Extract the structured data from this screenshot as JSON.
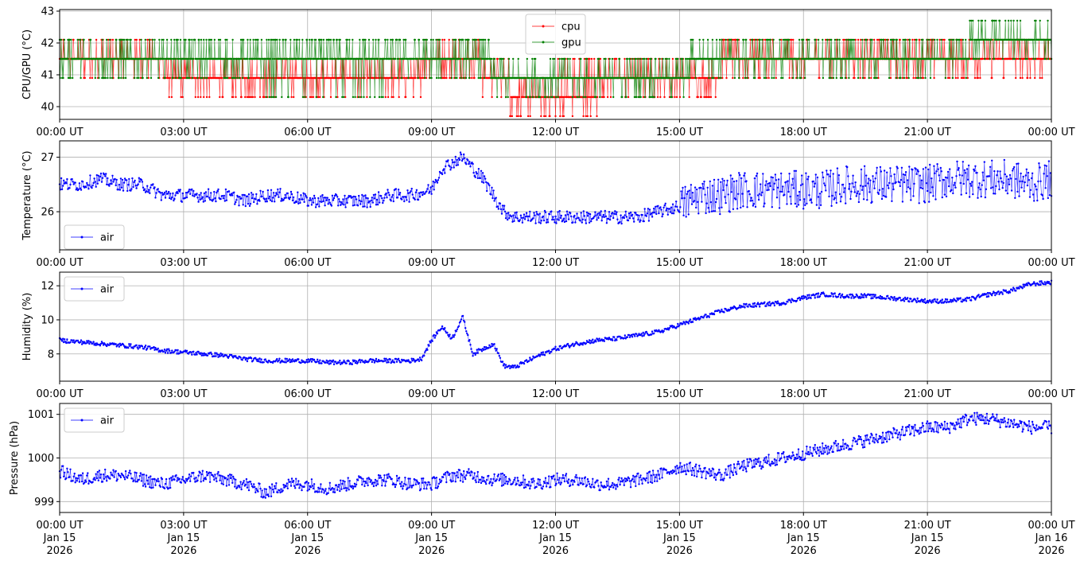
{
  "x_tick_labels": [
    "00:00 UT",
    "03:00 UT",
    "06:00 UT",
    "09:00 UT",
    "12:00 UT",
    "15:00 UT",
    "18:00 UT",
    "21:00 UT",
    "00:00 UT"
  ],
  "x_date_labels": [
    "Jan 15",
    "Jan 15",
    "Jan 15",
    "Jan 15",
    "Jan 15",
    "Jan 15",
    "Jan 15",
    "Jan 15",
    "Jan 16"
  ],
  "x_year_labels": [
    "2026",
    "2026",
    "2026",
    "2026",
    "2026",
    "2026",
    "2026",
    "2026",
    "2026"
  ],
  "colors": {
    "cpu": "#ff0000",
    "gpu": "#008000",
    "air": "#0000ff",
    "grid": "#b0b0b0"
  },
  "chart_data": [
    {
      "type": "line",
      "ylabel": "CPU/GPU (°C)",
      "xlim": [
        "2026-01-15 00:00",
        "2026-01-16 00:00"
      ],
      "ylim": [
        39.6,
        43.05
      ],
      "yticks": [
        40,
        41,
        42,
        43
      ],
      "ytick_labels": [
        "40",
        "41",
        "42",
        "43"
      ],
      "grid": true,
      "legend": "top-center",
      "series": [
        {
          "name": "cpu",
          "color": "#ff0000",
          "x_hours": [
            0,
            1,
            2,
            3,
            4,
            5,
            6,
            7,
            8,
            9,
            10,
            11,
            12,
            13,
            14,
            15,
            16,
            17,
            18,
            19,
            20,
            21,
            22,
            23,
            24
          ],
          "values": [
            41.1,
            41.1,
            41.1,
            40.9,
            40.7,
            40.7,
            40.7,
            40.7,
            40.7,
            41.1,
            41.2,
            40.3,
            40.4,
            40.4,
            40.5,
            40.7,
            41.0,
            41.2,
            41.1,
            41.1,
            41.1,
            41.1,
            41.2,
            41.2,
            41.2
          ]
        },
        {
          "name": "gpu",
          "color": "#008000",
          "x_hours": [
            0,
            1,
            2,
            3,
            4,
            5,
            6,
            7,
            8,
            9,
            10,
            11,
            12,
            13,
            14,
            15,
            16,
            17,
            18,
            19,
            20,
            21,
            22,
            23,
            24
          ],
          "values": [
            41.5,
            41.5,
            41.4,
            41.3,
            41.2,
            41.0,
            41.0,
            41.0,
            41.0,
            41.3,
            41.3,
            40.6,
            40.7,
            40.7,
            40.8,
            40.9,
            41.3,
            41.5,
            41.5,
            41.4,
            41.5,
            41.5,
            41.6,
            41.6,
            41.6
          ]
        }
      ]
    },
    {
      "type": "line",
      "ylabel": "Temperature (°C)",
      "xlim": [
        "2026-01-15 00:00",
        "2026-01-16 00:00"
      ],
      "ylim": [
        25.3,
        27.3
      ],
      "yticks": [
        26,
        27
      ],
      "ytick_labels": [
        "26",
        "27"
      ],
      "grid": true,
      "legend": "bottom-left",
      "series": [
        {
          "name": "air",
          "color": "#0000ff",
          "x_hours": [
            0,
            0.5,
            1,
            1.5,
            2,
            2.5,
            3,
            3.5,
            4,
            4.5,
            5,
            5.5,
            6,
            6.5,
            7,
            7.5,
            8,
            8.5,
            9,
            9.25,
            9.5,
            9.75,
            10,
            10.25,
            10.5,
            10.75,
            11,
            11.5,
            12,
            12.5,
            13,
            13.5,
            14,
            14.5,
            15,
            15.5,
            16,
            16.5,
            17,
            17.5,
            18,
            18.5,
            19,
            19.5,
            20,
            20.5,
            21,
            21.5,
            22,
            22.5,
            23,
            23.5,
            24
          ],
          "values": [
            26.5,
            26.5,
            26.6,
            26.5,
            26.5,
            26.3,
            26.3,
            26.3,
            26.3,
            26.2,
            26.3,
            26.3,
            26.2,
            26.2,
            26.2,
            26.2,
            26.3,
            26.3,
            26.4,
            26.8,
            26.9,
            27.0,
            26.8,
            26.6,
            26.3,
            26.0,
            25.9,
            25.9,
            25.9,
            25.9,
            25.9,
            25.9,
            25.9,
            26.0,
            26.1,
            26.3,
            26.3,
            26.4,
            26.4,
            26.4,
            26.4,
            26.4,
            26.5,
            26.5,
            26.5,
            26.5,
            26.5,
            26.6,
            26.6,
            26.6,
            26.6,
            26.5,
            26.6
          ]
        }
      ]
    },
    {
      "type": "line",
      "ylabel": "Humidity (%)",
      "xlim": [
        "2026-01-15 00:00",
        "2026-01-16 00:00"
      ],
      "ylim": [
        6.4,
        12.8
      ],
      "yticks": [
        8,
        10,
        12
      ],
      "ytick_labels": [
        "8",
        "10",
        "12"
      ],
      "grid": true,
      "legend": "top-left",
      "series": [
        {
          "name": "air",
          "color": "#0000ff",
          "x_hours": [
            0,
            0.5,
            1,
            1.5,
            2,
            2.5,
            3,
            3.5,
            4,
            4.5,
            5,
            5.5,
            6,
            6.5,
            7,
            7.5,
            8,
            8.5,
            8.75,
            9,
            9.25,
            9.5,
            9.75,
            10,
            10.25,
            10.5,
            10.75,
            11,
            11.5,
            12,
            12.5,
            13,
            13.5,
            14,
            14.5,
            15,
            15.5,
            16,
            16.5,
            17,
            17.5,
            18,
            18.5,
            19,
            19.5,
            20,
            20.5,
            21,
            21.5,
            22,
            22.5,
            23,
            23.5,
            24
          ],
          "values": [
            8.8,
            8.7,
            8.6,
            8.5,
            8.4,
            8.2,
            8.1,
            8.0,
            7.9,
            7.7,
            7.6,
            7.6,
            7.6,
            7.5,
            7.5,
            7.6,
            7.6,
            7.6,
            7.7,
            8.8,
            9.6,
            8.9,
            10.2,
            8.0,
            8.3,
            8.6,
            7.3,
            7.2,
            7.8,
            8.3,
            8.6,
            8.8,
            8.9,
            9.1,
            9.3,
            9.7,
            10.1,
            10.5,
            10.8,
            10.9,
            11.0,
            11.3,
            11.5,
            11.4,
            11.4,
            11.3,
            11.2,
            11.1,
            11.1,
            11.2,
            11.5,
            11.7,
            12.1,
            12.2
          ]
        }
      ]
    },
    {
      "type": "line",
      "ylabel": "Pressure (hPa)",
      "xlim": [
        "2026-01-15 00:00",
        "2026-01-16 00:00"
      ],
      "ylim": [
        998.75,
        1001.25
      ],
      "yticks": [
        999,
        1000,
        1001
      ],
      "ytick_labels": [
        "999",
        "1000",
        "1001"
      ],
      "grid": true,
      "legend": "top-left",
      "series": [
        {
          "name": "air",
          "color": "#0000ff",
          "x_hours": [
            0,
            0.5,
            1,
            1.5,
            2,
            2.5,
            3,
            3.5,
            4,
            4.5,
            5,
            5.5,
            6,
            6.5,
            7,
            7.5,
            8,
            8.5,
            9,
            9.5,
            10,
            10.5,
            11,
            11.5,
            12,
            12.5,
            13,
            13.5,
            14,
            14.5,
            15,
            15.5,
            16,
            16.5,
            17,
            17.5,
            18,
            18.5,
            19,
            19.5,
            20,
            20.5,
            21,
            21.5,
            22,
            22.5,
            23,
            23.5,
            24
          ],
          "values": [
            999.7,
            999.5,
            999.6,
            999.6,
            999.5,
            999.4,
            999.5,
            999.6,
            999.5,
            999.4,
            999.2,
            999.4,
            999.4,
            999.3,
            999.4,
            999.5,
            999.5,
            999.4,
            999.4,
            999.6,
            999.6,
            999.5,
            999.5,
            999.4,
            999.5,
            999.5,
            999.4,
            999.4,
            999.5,
            999.6,
            999.8,
            999.7,
            999.6,
            999.8,
            999.9,
            1000.0,
            1000.1,
            1000.2,
            1000.3,
            1000.4,
            1000.5,
            1000.6,
            1000.7,
            1000.7,
            1000.9,
            1000.9,
            1000.8,
            1000.7,
            1000.7
          ]
        }
      ]
    }
  ]
}
